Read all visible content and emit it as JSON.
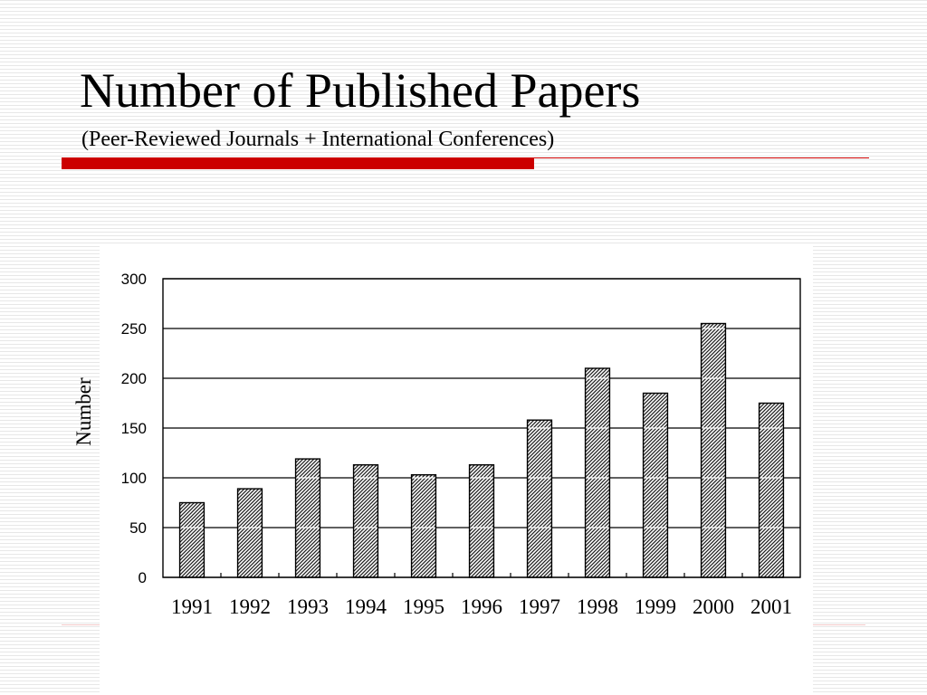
{
  "slide": {
    "title": "Number of Published Papers",
    "subtitle": "(Peer-Reviewed Journals + International Conferences)",
    "accent_color": "#cc0000"
  },
  "chart_data": {
    "type": "bar",
    "title": "",
    "xlabel": "",
    "ylabel": "Number",
    "categories": [
      "1991",
      "1992",
      "1993",
      "1994",
      "1995",
      "1996",
      "1997",
      "1998",
      "1999",
      "2000",
      "2001"
    ],
    "values": [
      75,
      89,
      119,
      113,
      103,
      113,
      158,
      210,
      185,
      255,
      175
    ],
    "ylim": [
      0,
      300
    ],
    "yticks": [
      0,
      50,
      100,
      150,
      200,
      250,
      300
    ],
    "grid": true,
    "legend": "none",
    "bar_fill": "hatched gray"
  }
}
